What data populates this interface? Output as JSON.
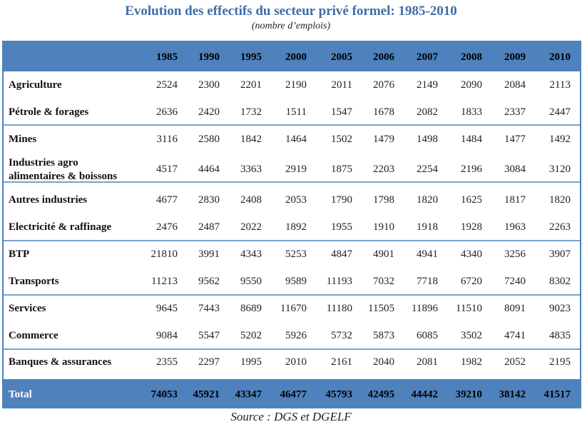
{
  "title": "Evolution des effectifs du secteur privé formel: 1985-2010",
  "subtitle": "(nombre d’emplois)",
  "source": "Source : DGS et DGELF",
  "colors": {
    "header_bg": "#4f81bd",
    "header_text": "#000000",
    "total_text": "#ffffff",
    "title": "#3f6da6",
    "border": "#4f81bd"
  },
  "chart_data": {
    "type": "table",
    "title": "Evolution des effectifs du secteur privé formel: 1985-2010",
    "subtitle": "(nombre d’emplois)",
    "columns": [
      "1985",
      "1990",
      "1995",
      "2000",
      "2005",
      "2006",
      "2007",
      "2008",
      "2009",
      "2010"
    ],
    "rows": [
      {
        "label": [
          "Agriculture"
        ],
        "values": [
          2524,
          2300,
          2201,
          2190,
          2011,
          2076,
          2149,
          2090,
          2084,
          2113
        ]
      },
      {
        "label": [
          "Pétrole & forages"
        ],
        "values": [
          2636,
          2420,
          1732,
          1511,
          1547,
          1678,
          2082,
          1833,
          2337,
          2447
        ]
      },
      {
        "label": [
          "Mines"
        ],
        "values": [
          3116,
          2580,
          1842,
          1464,
          1502,
          1479,
          1498,
          1484,
          1477,
          1492
        ]
      },
      {
        "label": [
          "Industries agro",
          "alimentaires & boissons"
        ],
        "values": [
          4517,
          4464,
          3363,
          2919,
          1875,
          2203,
          2254,
          2196,
          3084,
          3120
        ]
      },
      {
        "label": [
          "Autres industries"
        ],
        "values": [
          4677,
          2830,
          2408,
          2053,
          1790,
          1798,
          1820,
          1625,
          1817,
          1820
        ]
      },
      {
        "label": [
          "Electricité & raffinage"
        ],
        "values": [
          2476,
          2487,
          2022,
          1892,
          1955,
          1910,
          1918,
          1928,
          1963,
          2263
        ]
      },
      {
        "label": [
          "BTP"
        ],
        "values": [
          21810,
          3991,
          4343,
          5253,
          4847,
          4901,
          4941,
          4340,
          3256,
          3907
        ]
      },
      {
        "label": [
          "Transports"
        ],
        "values": [
          11213,
          9562,
          9550,
          9589,
          11193,
          7032,
          7718,
          6720,
          7240,
          8302
        ]
      },
      {
        "label": [
          "Services"
        ],
        "values": [
          9645,
          7443,
          8689,
          11670,
          11180,
          11505,
          11896,
          11510,
          8091,
          9023
        ]
      },
      {
        "label": [
          "Commerce"
        ],
        "values": [
          9084,
          5547,
          5202,
          5926,
          5732,
          5873,
          6085,
          3502,
          4741,
          4835
        ]
      },
      {
        "label": [
          "Banques & assurances"
        ],
        "values": [
          2355,
          2297,
          1995,
          2010,
          2161,
          2040,
          2081,
          1982,
          2052,
          2195
        ]
      }
    ],
    "total": {
      "label": "Total",
      "values": [
        74053,
        45921,
        43347,
        46477,
        45793,
        42495,
        44442,
        39210,
        38142,
        41517
      ]
    }
  }
}
